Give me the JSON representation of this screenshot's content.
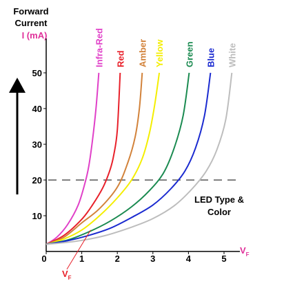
{
  "chart_data": {
    "type": "line",
    "title_lines": [
      "Forward",
      "Current"
    ],
    "ylabel": "I (mA)",
    "ylabel_color": "#e0319a",
    "xlabel": "V",
    "xlabel_sub": "F",
    "xlabel_color": "#e0319a",
    "annotation": {
      "text": "V",
      "sub": "F",
      "color": "#e8202a",
      "x": 1.25,
      "y": 0
    },
    "note_lines": [
      "LED Type &",
      "Color"
    ],
    "xlim": [
      0,
      5.5
    ],
    "ylim": [
      0,
      55
    ],
    "x_ticks": [
      0,
      1,
      2,
      3,
      4,
      5
    ],
    "y_ticks": [
      10,
      20,
      30,
      40,
      50
    ],
    "reference_line": {
      "y": 20,
      "style": "dashed",
      "color": "#555555"
    },
    "arrow": "up",
    "series": [
      {
        "name": "Infra-Red",
        "color": "#e040c8",
        "x": [
          0,
          0.3,
          0.6,
          0.9,
          1.1,
          1.2,
          1.3,
          1.4,
          1.48
        ],
        "y": [
          2,
          4,
          7.5,
          13,
          19.5,
          24,
          31,
          40,
          50
        ]
      },
      {
        "name": "Red",
        "color": "#e8202a",
        "x": [
          0,
          0.5,
          1.0,
          1.3,
          1.6,
          1.8,
          1.9,
          2.0,
          2.08
        ],
        "y": [
          2,
          4.5,
          9,
          13,
          18,
          23,
          27,
          34,
          50
        ]
      },
      {
        "name": "Amber",
        "color": "#d2823a",
        "x": [
          0,
          0.5,
          1.0,
          1.5,
          2.0,
          2.3,
          2.5,
          2.62,
          2.7
        ],
        "y": [
          2,
          4,
          8,
          12,
          18,
          25,
          32,
          40,
          50
        ]
      },
      {
        "name": "Yellow",
        "color": "#f4ee00",
        "x": [
          0,
          0.5,
          1.0,
          1.5,
          2.0,
          2.4,
          2.7,
          2.9,
          3.05,
          3.18
        ],
        "y": [
          2,
          3.5,
          6,
          10,
          15,
          20,
          26,
          33,
          41,
          50
        ]
      },
      {
        "name": "Green",
        "color": "#1a8a50",
        "x": [
          0,
          0.6,
          1.2,
          1.8,
          2.4,
          2.9,
          3.3,
          3.6,
          3.85,
          4.02
        ],
        "y": [
          2,
          3.2,
          5.5,
          8.5,
          12.5,
          17,
          22,
          29,
          38,
          50
        ]
      },
      {
        "name": "Blue",
        "color": "#1a2ad0",
        "x": [
          0,
          0.6,
          1.2,
          1.8,
          2.4,
          3.0,
          3.5,
          3.9,
          4.2,
          4.45,
          4.62
        ],
        "y": [
          2,
          3,
          4.5,
          6.5,
          9.5,
          13,
          17.5,
          22.5,
          29,
          38,
          50
        ]
      },
      {
        "name": "White",
        "color": "#bdbdbd",
        "x": [
          0,
          0.8,
          1.6,
          2.4,
          3.0,
          3.6,
          4.1,
          4.5,
          4.8,
          5.05,
          5.22
        ],
        "y": [
          2,
          2.8,
          4.3,
          6.8,
          9.2,
          12.8,
          17.5,
          22.5,
          28.5,
          37,
          50
        ]
      }
    ]
  }
}
